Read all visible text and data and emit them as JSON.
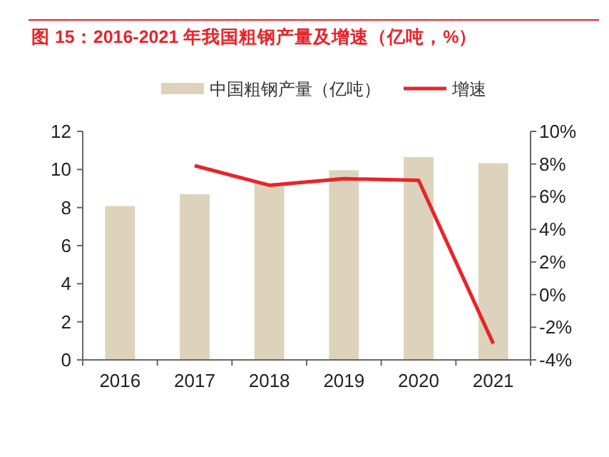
{
  "chart_data": {
    "type": "bar",
    "title": "图 15：2016-2021 年我国粗钢产量及增速（亿吨，%）",
    "categories": [
      "2016",
      "2017",
      "2018",
      "2019",
      "2020",
      "2021"
    ],
    "series": [
      {
        "name": "中国粗钢产量（亿吨）",
        "color": "#ddd3bc",
        "values": [
          8.08,
          8.7,
          9.28,
          9.96,
          10.65,
          10.33
        ]
      },
      {
        "name": "增速",
        "type": "line",
        "axis": "y2",
        "color": "#e8242a",
        "values": [
          null,
          7.9,
          6.7,
          7.1,
          7.0,
          -3.0
        ]
      }
    ],
    "ylim": [
      0,
      12
    ],
    "yticks": [
      0,
      2,
      4,
      6,
      8,
      10,
      12
    ],
    "y2lim": [
      -4,
      10
    ],
    "y2ticks": [
      {
        "value": -4,
        "label": "-4%"
      },
      {
        "value": -2,
        "label": "-2%"
      },
      {
        "value": 0,
        "label": "0%"
      },
      {
        "value": 2,
        "label": "2%"
      },
      {
        "value": 4,
        "label": "4%"
      },
      {
        "value": 6,
        "label": "6%"
      },
      {
        "value": 8,
        "label": "8%"
      },
      {
        "value": 10,
        "label": "10%"
      }
    ],
    "legend": "top",
    "grid": false,
    "marker": "none",
    "line_style": "solid"
  }
}
